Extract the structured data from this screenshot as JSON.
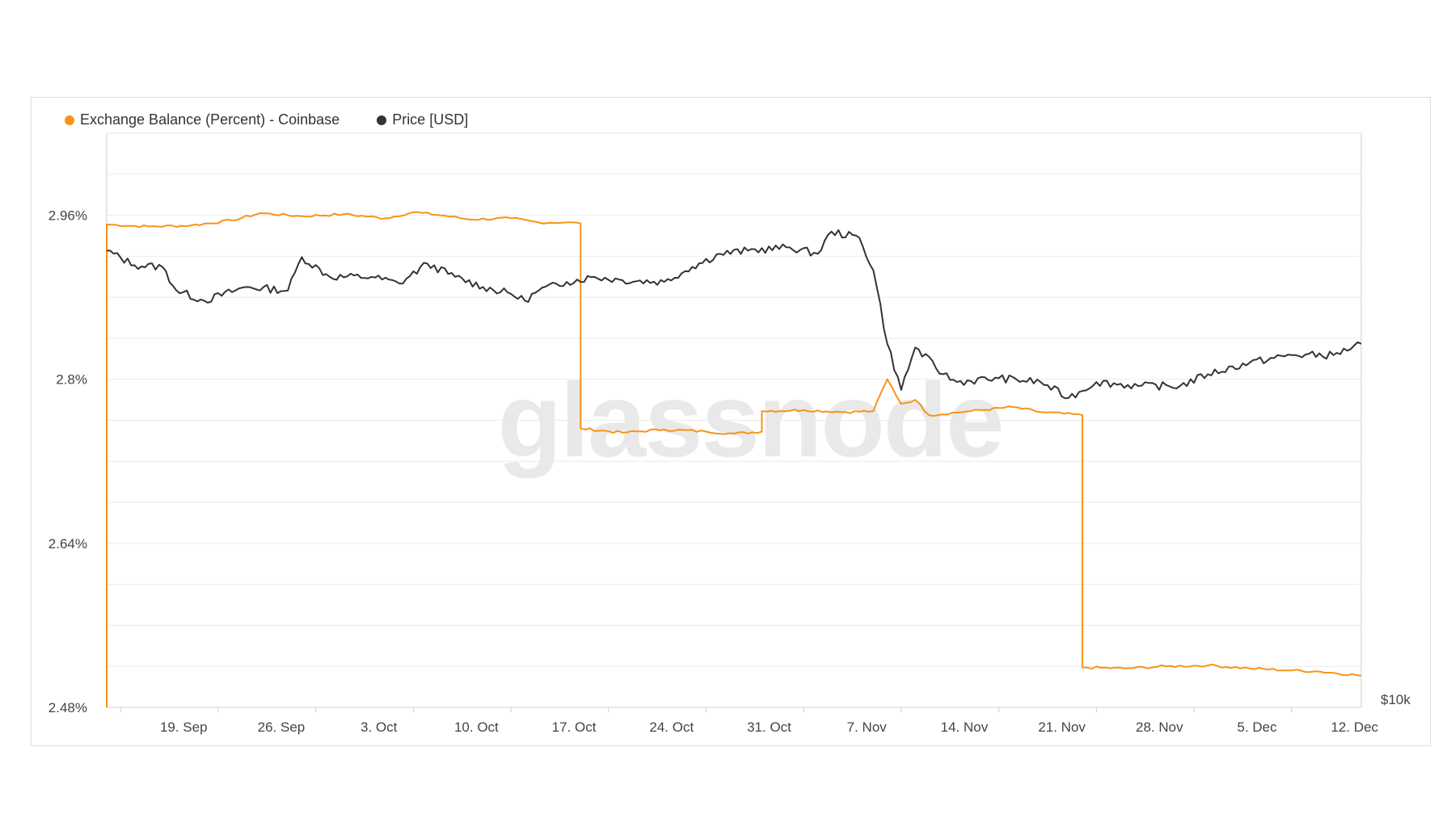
{
  "legend": {
    "series1": "Exchange Balance (Percent) - Coinbase",
    "series2": "Price [USD]"
  },
  "watermark": "glassnode",
  "colors": {
    "balance": "#f7931a",
    "price": "#333333",
    "grid": "#ebebeb"
  },
  "chart_data": {
    "type": "line",
    "x_tick_labels": [
      "19. Sep",
      "26. Sep",
      "3. Oct",
      "10. Oct",
      "17. Oct",
      "24. Oct",
      "31. Oct",
      "7. Nov",
      "14. Nov",
      "21. Nov",
      "28. Nov",
      "5. Dec",
      "12. Dec"
    ],
    "x_range": [
      "2022-09-14",
      "2022-12-13"
    ],
    "y_left": {
      "ticks": [
        "2.96%",
        "2.8%",
        "2.64%",
        "2.48%"
      ],
      "range": [
        2.48,
        3.04
      ],
      "unit": "%"
    },
    "y_right": {
      "ticks": [
        "$10k"
      ],
      "scale": "log"
    },
    "grid": true,
    "legend_position": "top-left",
    "series": [
      {
        "name": "Exchange Balance (Percent) - Coinbase",
        "axis": "left",
        "points": [
          [
            "2022-09-14",
            2.48
          ],
          [
            "2022-09-14",
            2.951
          ],
          [
            "2022-09-17",
            2.949
          ],
          [
            "2022-09-20",
            2.95
          ],
          [
            "2022-09-23",
            2.955
          ],
          [
            "2022-09-25",
            2.962
          ],
          [
            "2022-09-28",
            2.959
          ],
          [
            "2022-10-01",
            2.961
          ],
          [
            "2022-10-04",
            2.957
          ],
          [
            "2022-10-06",
            2.963
          ],
          [
            "2022-10-08",
            2.96
          ],
          [
            "2022-10-10",
            2.956
          ],
          [
            "2022-10-13",
            2.957
          ],
          [
            "2022-10-15",
            2.953
          ],
          [
            "2022-10-17",
            2.953
          ],
          [
            "2022-10-18",
            2.952
          ],
          [
            "2022-10-18",
            2.752
          ],
          [
            "2022-10-21",
            2.748
          ],
          [
            "2022-10-24",
            2.751
          ],
          [
            "2022-10-27",
            2.749
          ],
          [
            "2022-10-29",
            2.747
          ],
          [
            "2022-10-31",
            2.749
          ],
          [
            "2022-10-31",
            2.769
          ],
          [
            "2022-11-03",
            2.77
          ],
          [
            "2022-11-06",
            2.768
          ],
          [
            "2022-11-08",
            2.769
          ],
          [
            "2022-11-09",
            2.8
          ],
          [
            "2022-11-10",
            2.776
          ],
          [
            "2022-11-11",
            2.78
          ],
          [
            "2022-11-12",
            2.765
          ],
          [
            "2022-11-15",
            2.769
          ],
          [
            "2022-11-18",
            2.773
          ],
          [
            "2022-11-20",
            2.768
          ],
          [
            "2022-11-23",
            2.765
          ],
          [
            "2022-11-23",
            2.519
          ],
          [
            "2022-11-26",
            2.518
          ],
          [
            "2022-11-29",
            2.52
          ],
          [
            "2022-12-02",
            2.521
          ],
          [
            "2022-12-05",
            2.518
          ],
          [
            "2022-12-08",
            2.516
          ],
          [
            "2022-12-10",
            2.515
          ],
          [
            "2022-12-13",
            2.511
          ]
        ]
      },
      {
        "name": "Price [USD]",
        "axis": "right",
        "points": [
          [
            "2022-09-14",
            20200
          ],
          [
            "2022-09-16",
            19750
          ],
          [
            "2022-09-18",
            19700
          ],
          [
            "2022-09-19",
            19000
          ],
          [
            "2022-09-21",
            18700
          ],
          [
            "2022-09-24",
            19100
          ],
          [
            "2022-09-27",
            19000
          ],
          [
            "2022-09-28",
            20000
          ],
          [
            "2022-09-30",
            19400
          ],
          [
            "2022-10-03",
            19400
          ],
          [
            "2022-10-05",
            19200
          ],
          [
            "2022-10-07",
            19800
          ],
          [
            "2022-10-09",
            19400
          ],
          [
            "2022-10-11",
            19100
          ],
          [
            "2022-10-13",
            18900
          ],
          [
            "2022-10-14",
            18700
          ],
          [
            "2022-10-15",
            19000
          ],
          [
            "2022-10-17",
            19250
          ],
          [
            "2022-10-19",
            19400
          ],
          [
            "2022-10-21",
            19300
          ],
          [
            "2022-10-24",
            19250
          ],
          [
            "2022-10-26",
            19700
          ],
          [
            "2022-10-28",
            20100
          ],
          [
            "2022-10-30",
            20200
          ],
          [
            "2022-11-02",
            20300
          ],
          [
            "2022-11-04",
            20100
          ],
          [
            "2022-11-05",
            20800
          ],
          [
            "2022-11-07",
            20600
          ],
          [
            "2022-11-08",
            19600
          ],
          [
            "2022-11-09",
            17500
          ],
          [
            "2022-11-10",
            16300
          ],
          [
            "2022-11-11",
            17400
          ],
          [
            "2022-11-13",
            16700
          ],
          [
            "2022-11-14",
            16500
          ],
          [
            "2022-11-17",
            16600
          ],
          [
            "2022-11-20",
            16500
          ],
          [
            "2022-11-22",
            16100
          ],
          [
            "2022-11-24",
            16500
          ],
          [
            "2022-11-27",
            16400
          ],
          [
            "2022-11-30",
            16400
          ],
          [
            "2022-12-02",
            16700
          ],
          [
            "2022-12-05",
            17000
          ],
          [
            "2022-12-08",
            17200
          ],
          [
            "2022-12-11",
            17200
          ],
          [
            "2022-12-13",
            17500
          ]
        ]
      }
    ]
  }
}
